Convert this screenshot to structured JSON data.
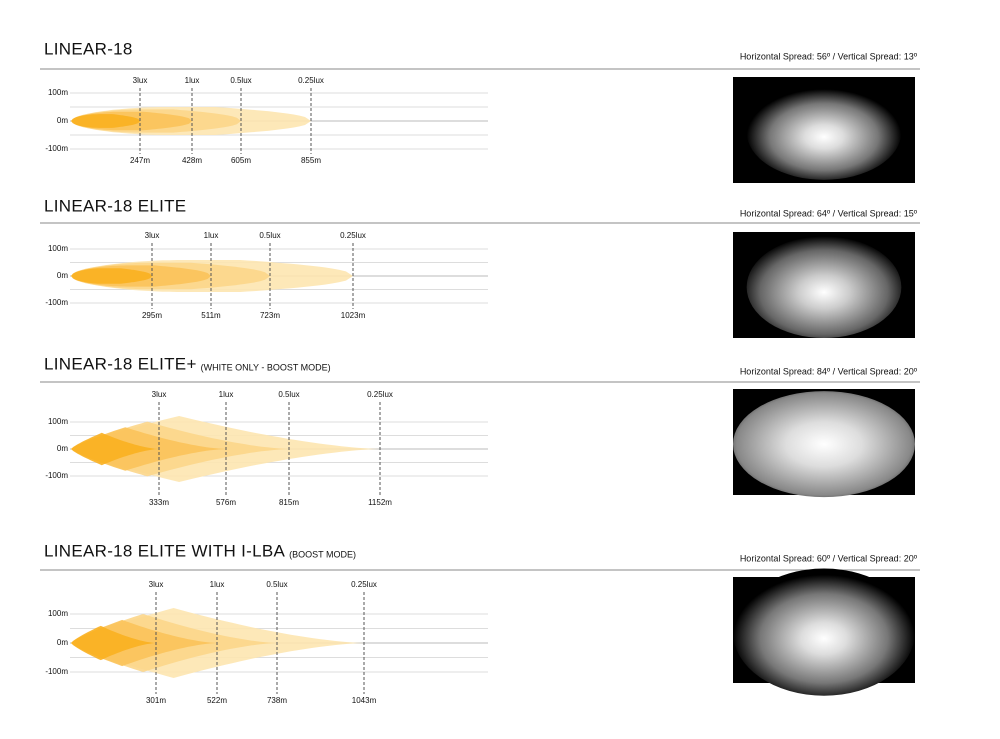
{
  "sections": [
    {
      "title": "LINEAR-18",
      "spread": "Horizontal Spread: 56º  /  Vertical Spread: 13º",
      "y_labels": [
        "100m",
        "0m",
        "-100m"
      ],
      "lux": [
        "3lux",
        "1lux",
        "0.5lux",
        "0.25lux"
      ],
      "distances": [
        "247m",
        "428m",
        "605m",
        "855m"
      ]
    },
    {
      "title": "LINEAR-18 ELITE",
      "spread": "Horizontal Spread: 64º  /  Vertical Spread: 15º",
      "y_labels": [
        "100m",
        "0m",
        "-100m"
      ],
      "lux": [
        "3lux",
        "1lux",
        "0.5lux",
        "0.25lux"
      ],
      "distances": [
        "295m",
        "511m",
        "723m",
        "1023m"
      ]
    },
    {
      "title": "LINEAR-18 ELITE+",
      "subtitle": "(WHITE ONLY - BOOST MODE)",
      "spread": "Horizontal Spread: 84º  /  Vertical Spread: 20º",
      "y_labels": [
        "100m",
        "0m",
        "-100m"
      ],
      "lux": [
        "3lux",
        "1lux",
        "0.5lux",
        "0.25lux"
      ],
      "distances": [
        "333m",
        "576m",
        "815m",
        "1152m"
      ]
    },
    {
      "title": "LINEAR-18 ELITE WITH I-LBA",
      "subtitle": "(BOOST MODE)",
      "spread": "Horizontal Spread: 60º  /  Vertical Spread: 20º",
      "y_labels": [
        "100m",
        "0m",
        "-100m"
      ],
      "lux": [
        "3lux",
        "1lux",
        "0.5lux",
        "0.25lux"
      ],
      "distances": [
        "301m",
        "522m",
        "738m",
        "1043m"
      ]
    }
  ]
}
